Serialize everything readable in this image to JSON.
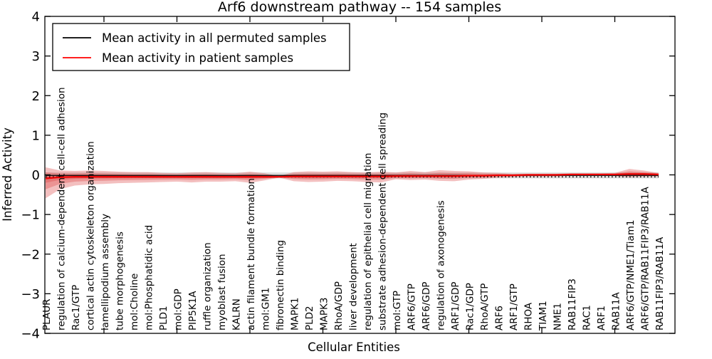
{
  "chart_data": {
    "type": "line",
    "title": "Arf6 downstream pathway -- 154 samples",
    "xlabel": "Cellular Entities",
    "ylabel": "Inferred Activity",
    "ylim": [
      -4,
      4
    ],
    "yticks": [
      4,
      3,
      2,
      1,
      0,
      -1,
      -2,
      -3,
      -4
    ],
    "grid": false,
    "legend_position": "upper left",
    "legend": [
      {
        "label": "Mean activity in all permuted samples",
        "color": "#000000",
        "style": "solid"
      },
      {
        "label": "Mean activity in patient samples",
        "color": "#ff0000",
        "style": "solid"
      }
    ],
    "categories": [
      "PLAUR",
      "regulation of calcium-dependent cell-cell adhesion",
      "Rac1/GTP",
      "cortical actin cytoskeleton organization",
      "lamellipodium assembly",
      "tube morphogenesis",
      "mol:Choline",
      "mol:Phosphatidic acid",
      "PLD1",
      "mol:GDP",
      "PIP5K1A",
      "ruffle organization",
      "myoblast fusion",
      "KALRN",
      "actin filament bundle formation",
      "mol:GM1",
      "fibronectin binding",
      "MAPK1",
      "PLD2",
      "MAPK3",
      "RhoA/GDP",
      "liver development",
      "regulation of epithelial cell migration",
      "substrate adhesion-dependent cell spreading",
      "mol:GTP",
      "ARF6/GTP",
      "ARF6/GDP",
      "regulation of axonogenesis",
      "ARF1/GDP",
      "Rac1/GDP",
      "RhoA/GTP",
      "ARF6",
      "ARF1/GTP",
      "RHOA",
      "TIAM1",
      "NME1",
      "RAB11FIP3",
      "RAC1",
      "ARF1",
      "RAB11A",
      "ARF6/GTP/NME1/Tiam1",
      "ARF6/GTP/RAB11FIP3/RAB11A",
      "RAB11FIP3/RAB11A"
    ],
    "series": [
      {
        "name": "Mean activity in all permuted samples",
        "color": "#000000",
        "style": "solid",
        "constant_value": -0.014
      },
      {
        "name": "Mean activity in patient samples",
        "color": "#ee0000",
        "style": "solid",
        "values": [
          -0.09,
          -0.06,
          -0.05,
          -0.05,
          -0.05,
          -0.05,
          -0.05,
          -0.05,
          -0.05,
          -0.05,
          -0.05,
          -0.05,
          -0.05,
          -0.05,
          -0.05,
          -0.05,
          -0.05,
          -0.04,
          -0.04,
          -0.04,
          -0.04,
          -0.04,
          -0.04,
          -0.04,
          -0.03,
          -0.03,
          -0.03,
          -0.03,
          -0.03,
          -0.02,
          -0.02,
          -0.01,
          -0.01,
          0.0,
          0.0,
          0.0,
          0.01,
          0.01,
          0.01,
          0.01,
          0.02,
          0.02,
          0.01
        ]
      }
    ],
    "zero_reference_line": {
      "style": "dotted",
      "color": "#000000",
      "value": -0.05
    },
    "bands": {
      "patient_std_upper": [
        0.28,
        0.17,
        0.15,
        0.16,
        0.15,
        0.13,
        0.12,
        0.12,
        0.1,
        0.09,
        0.11,
        0.12,
        0.1,
        0.09,
        0.13,
        0.09,
        0.02,
        0.11,
        0.13,
        0.12,
        0.13,
        0.11,
        0.1,
        0.12,
        0.09,
        0.13,
        0.1,
        0.15,
        0.13,
        0.11,
        0.08,
        0.06,
        0.04,
        0.03,
        0.03,
        0.03,
        0.03,
        0.03,
        0.03,
        0.04,
        0.13,
        0.09,
        0.04
      ],
      "patient_std_lower": [
        0.5,
        0.3,
        0.22,
        0.19,
        0.18,
        0.16,
        0.15,
        0.14,
        0.13,
        0.12,
        0.14,
        0.12,
        0.12,
        0.11,
        0.15,
        0.09,
        0.02,
        0.12,
        0.14,
        0.13,
        0.11,
        0.12,
        0.14,
        0.15,
        0.08,
        0.1,
        0.09,
        0.12,
        0.13,
        0.1,
        0.08,
        0.06,
        0.05,
        0.04,
        0.04,
        0.04,
        0.03,
        0.03,
        0.03,
        0.04,
        0.08,
        0.06,
        0.05
      ],
      "band_color": "#dc3c3c",
      "band_opacity": 0.33,
      "inner_scale": 0.55,
      "core_scale": 0.22,
      "permuted_band": {
        "center": -0.014,
        "half_width": 0.075,
        "color": "#999999",
        "opacity": 0.32
      }
    },
    "xtick_major_indices": [
      4,
      9,
      14,
      19,
      24,
      29,
      34,
      39
    ]
  }
}
